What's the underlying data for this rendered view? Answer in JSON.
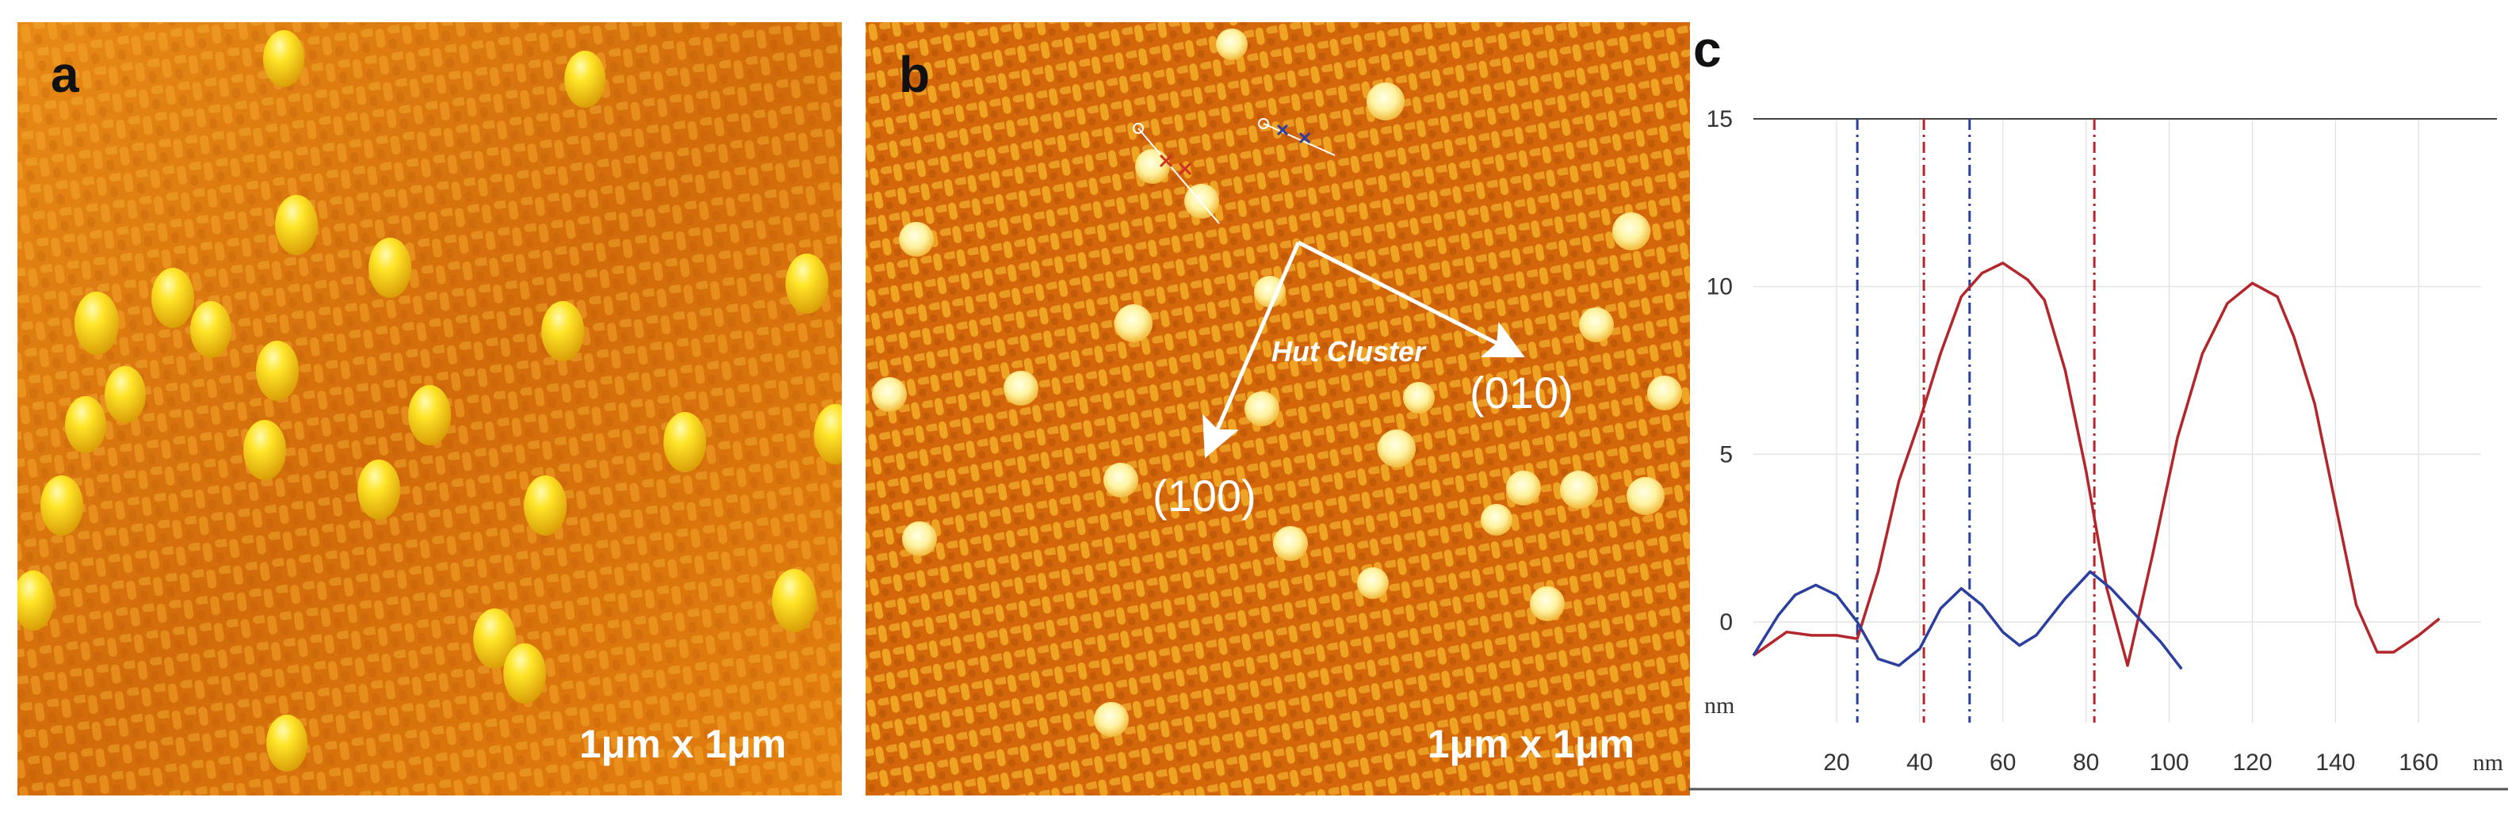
{
  "figure": {
    "panel_a": {
      "letter": "a",
      "scale_label": "1μm x 1μm"
    },
    "panel_b": {
      "letter": "b",
      "scale_label": "1μm x 1μm",
      "annotation": "Hut Cluster",
      "direction_010": "(010)",
      "direction_100": "(100)"
    },
    "panel_c": {
      "letter": "c"
    }
  },
  "colors": {
    "afm_base": "#d9720a",
    "afm_bright": "#ffe23a",
    "red_series": "#b3262b",
    "blue_series": "#2a3f9e"
  },
  "chart_data": {
    "type": "line",
    "x_unit": "nm",
    "y_unit": "nm",
    "xlim": [
      0,
      175
    ],
    "ylim": [
      -3,
      15
    ],
    "x_ticks": [
      20,
      40,
      60,
      80,
      100,
      120,
      140,
      160
    ],
    "y_ticks": [
      0,
      5,
      10,
      15
    ],
    "grid": true,
    "series": [
      {
        "color": "#b3262b",
        "points": [
          [
            0,
            -1.0
          ],
          [
            8,
            -0.3
          ],
          [
            14,
            -0.4
          ],
          [
            20,
            -0.4
          ],
          [
            25,
            -0.5
          ],
          [
            30,
            1.5
          ],
          [
            35,
            4.2
          ],
          [
            40,
            6.0
          ],
          [
            45,
            8.0
          ],
          [
            50,
            9.7
          ],
          [
            55,
            10.4
          ],
          [
            60,
            10.7
          ],
          [
            66,
            10.2
          ],
          [
            70,
            9.6
          ],
          [
            75,
            7.5
          ],
          [
            80,
            4.5
          ],
          [
            85,
            1.0
          ],
          [
            90,
            -1.3
          ],
          [
            96,
            2.0
          ],
          [
            102,
            5.5
          ],
          [
            108,
            8.0
          ],
          [
            114,
            9.5
          ],
          [
            120,
            10.1
          ],
          [
            126,
            9.7
          ],
          [
            130,
            8.5
          ],
          [
            135,
            6.5
          ],
          [
            140,
            3.5
          ],
          [
            145,
            0.5
          ],
          [
            150,
            -0.9
          ],
          [
            154,
            -0.9
          ],
          [
            160,
            -0.4
          ],
          [
            165,
            0.1
          ]
        ]
      },
      {
        "color": "#2a3f9e",
        "points": [
          [
            0,
            -1.0
          ],
          [
            6,
            0.2
          ],
          [
            10,
            0.8
          ],
          [
            15,
            1.1
          ],
          [
            20,
            0.8
          ],
          [
            25,
            0.0
          ],
          [
            30,
            -1.1
          ],
          [
            35,
            -1.3
          ],
          [
            40,
            -0.8
          ],
          [
            45,
            0.4
          ],
          [
            50,
            1.0
          ],
          [
            55,
            0.5
          ],
          [
            60,
            -0.3
          ],
          [
            64,
            -0.7
          ],
          [
            68,
            -0.4
          ],
          [
            75,
            0.7
          ],
          [
            81,
            1.5
          ],
          [
            86,
            1.0
          ],
          [
            92,
            0.2
          ],
          [
            98,
            -0.6
          ],
          [
            103,
            -1.4
          ]
        ]
      }
    ],
    "markers": [
      {
        "x": 25,
        "color": "#2a3f9e"
      },
      {
        "x": 52,
        "color": "#2a3f9e"
      },
      {
        "x": 41,
        "color": "#b3262b"
      },
      {
        "x": 82,
        "color": "#b3262b"
      }
    ]
  }
}
